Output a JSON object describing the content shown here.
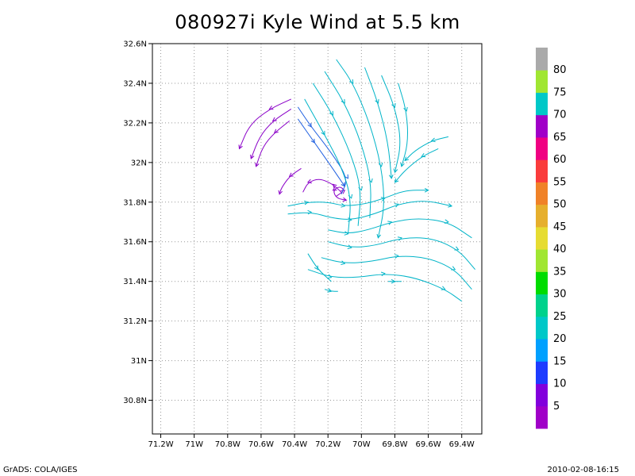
{
  "title": "080927i Kyle Wind at 5.5 km",
  "footer": {
    "left": "GrADS: COLA/IGES",
    "right": "2010-02-08-16:15"
  },
  "chart_data": {
    "type": "streamline",
    "title": "080927i Kyle Wind at 5.5 km",
    "xlabel": "",
    "ylabel": "",
    "xlim": [
      -71.25,
      -69.28
    ],
    "ylim": [
      30.63,
      32.6
    ],
    "grid": true,
    "x_ticks": [
      {
        "value": -71.2,
        "label": "71.2W"
      },
      {
        "value": -71.0,
        "label": "71W"
      },
      {
        "value": -70.8,
        "label": "70.8W"
      },
      {
        "value": -70.6,
        "label": "70.6W"
      },
      {
        "value": -70.4,
        "label": "70.4W"
      },
      {
        "value": -70.2,
        "label": "70.2W"
      },
      {
        "value": -70.0,
        "label": "70W"
      },
      {
        "value": -69.8,
        "label": "69.8W"
      },
      {
        "value": -69.6,
        "label": "69.6W"
      },
      {
        "value": -69.4,
        "label": "69.4W"
      }
    ],
    "y_ticks": [
      {
        "value": 30.8,
        "label": "30.8N"
      },
      {
        "value": 31.0,
        "label": "31N"
      },
      {
        "value": 31.2,
        "label": "31.2N"
      },
      {
        "value": 31.4,
        "label": "31.4N"
      },
      {
        "value": 31.6,
        "label": "31.6N"
      },
      {
        "value": 31.8,
        "label": "31.8N"
      },
      {
        "value": 32.0,
        "label": "32N"
      },
      {
        "value": 32.2,
        "label": "32.2N"
      },
      {
        "value": 32.4,
        "label": "32.4N"
      },
      {
        "value": 32.6,
        "label": "32.6N"
      }
    ],
    "storm_center": {
      "lon": -70.12,
      "lat": 31.84
    },
    "colorbar": {
      "colors": [
        "#a000c8",
        "#8200dc",
        "#1e3cff",
        "#00a0ff",
        "#00c8c8",
        "#00d28c",
        "#00dc00",
        "#a0e632",
        "#e6dc32",
        "#e6af2d",
        "#f08228",
        "#fa3c3c",
        "#f00082",
        "#a000c8",
        "#00c8c8",
        "#a0e632",
        "#aaaaaa"
      ],
      "labels": [
        "5",
        "10",
        "15",
        "20",
        "25",
        "30",
        "35",
        "40",
        "45",
        "50",
        "55",
        "60",
        "65",
        "70",
        "75",
        "80"
      ]
    },
    "streamlines": [
      {
        "color": "#8a00c8",
        "points": [
          [
            -70.42,
            32.32
          ],
          [
            -70.55,
            32.27
          ],
          [
            -70.67,
            32.19
          ],
          [
            -70.73,
            32.07
          ]
        ]
      },
      {
        "color": "#8a00c8",
        "points": [
          [
            -70.42,
            32.27
          ],
          [
            -70.53,
            32.21
          ],
          [
            -70.61,
            32.13
          ],
          [
            -70.66,
            32.02
          ]
        ]
      },
      {
        "color": "#8a00c8",
        "points": [
          [
            -70.43,
            32.21
          ],
          [
            -70.52,
            32.15
          ],
          [
            -70.59,
            32.08
          ],
          [
            -70.63,
            31.98
          ]
        ]
      },
      {
        "color": "#8a00c8",
        "points": [
          [
            -70.36,
            31.97
          ],
          [
            -70.43,
            31.93
          ],
          [
            -70.48,
            31.87
          ],
          [
            -70.49,
            31.84
          ]
        ]
      },
      {
        "color": "#8a00c8",
        "points": [
          [
            -70.12,
            31.85
          ],
          [
            -70.17,
            31.89
          ],
          [
            -70.25,
            31.92
          ],
          [
            -70.32,
            31.9
          ],
          [
            -70.35,
            31.85
          ]
        ]
      },
      {
        "color": "#8a00c8",
        "points": [
          [
            -70.15,
            31.83
          ],
          [
            -70.1,
            31.86
          ],
          [
            -70.13,
            31.88
          ],
          [
            -70.17,
            31.86
          ],
          [
            -70.15,
            31.82
          ],
          [
            -70.09,
            31.81
          ]
        ]
      },
      {
        "color": "#2060e0",
        "points": [
          [
            -70.38,
            32.28
          ],
          [
            -70.3,
            32.18
          ],
          [
            -70.18,
            32.05
          ],
          [
            -70.08,
            31.92
          ],
          [
            -70.12,
            31.84
          ]
        ]
      },
      {
        "color": "#2060e0",
        "points": [
          [
            -70.38,
            32.22
          ],
          [
            -70.28,
            32.1
          ],
          [
            -70.18,
            31.98
          ],
          [
            -70.1,
            31.88
          ]
        ]
      },
      {
        "color": "#00b4c8",
        "points": [
          [
            -70.15,
            32.52
          ],
          [
            -70.05,
            32.4
          ],
          [
            -69.95,
            32.2
          ],
          [
            -69.88,
            31.98
          ],
          [
            -69.86,
            31.78
          ],
          [
            -69.9,
            31.62
          ]
        ]
      },
      {
        "color": "#00b4c8",
        "points": [
          [
            -70.22,
            32.46
          ],
          [
            -70.1,
            32.3
          ],
          [
            -70.0,
            32.1
          ],
          [
            -69.94,
            31.9
          ],
          [
            -69.95,
            31.72
          ]
        ]
      },
      {
        "color": "#00b4c8",
        "points": [
          [
            -70.29,
            32.4
          ],
          [
            -70.17,
            32.24
          ],
          [
            -70.06,
            32.04
          ],
          [
            -70.0,
            31.86
          ],
          [
            -70.02,
            31.68
          ]
        ]
      },
      {
        "color": "#00b4c8",
        "points": [
          [
            -70.34,
            32.32
          ],
          [
            -70.22,
            32.14
          ],
          [
            -70.12,
            31.98
          ],
          [
            -70.06,
            31.82
          ],
          [
            -70.08,
            31.64
          ]
        ]
      },
      {
        "color": "#00b4c8",
        "points": [
          [
            -69.98,
            32.48
          ],
          [
            -69.9,
            32.3
          ],
          [
            -69.84,
            32.1
          ],
          [
            -69.82,
            31.92
          ]
        ]
      },
      {
        "color": "#00b4c8",
        "points": [
          [
            -69.88,
            32.44
          ],
          [
            -69.8,
            32.28
          ],
          [
            -69.76,
            32.1
          ],
          [
            -69.8,
            31.95
          ]
        ]
      },
      {
        "color": "#00b4c8",
        "points": [
          [
            -69.78,
            32.4
          ],
          [
            -69.73,
            32.26
          ],
          [
            -69.72,
            32.1
          ],
          [
            -69.76,
            31.98
          ]
        ]
      },
      {
        "color": "#00b4c8",
        "points": [
          [
            -69.48,
            32.13
          ],
          [
            -69.58,
            32.11
          ],
          [
            -69.68,
            32.06
          ],
          [
            -69.74,
            32.01
          ]
        ]
      },
      {
        "color": "#00b4c8",
        "points": [
          [
            -69.54,
            32.07
          ],
          [
            -69.64,
            32.03
          ],
          [
            -69.74,
            31.96
          ],
          [
            -69.8,
            31.9
          ]
        ]
      },
      {
        "color": "#00b4c8",
        "points": [
          [
            -70.44,
            31.78
          ],
          [
            -70.32,
            31.8
          ],
          [
            -70.2,
            31.8
          ],
          [
            -70.1,
            31.78
          ],
          [
            -69.98,
            31.79
          ],
          [
            -69.86,
            31.82
          ],
          [
            -69.74,
            31.86
          ],
          [
            -69.6,
            31.86
          ]
        ]
      },
      {
        "color": "#00b4c8",
        "points": [
          [
            -70.44,
            31.74
          ],
          [
            -70.3,
            31.75
          ],
          [
            -70.18,
            31.72
          ],
          [
            -70.06,
            31.71
          ],
          [
            -69.92,
            31.74
          ],
          [
            -69.78,
            31.79
          ],
          [
            -69.62,
            31.81
          ],
          [
            -69.46,
            31.78
          ]
        ]
      },
      {
        "color": "#00b4c8",
        "points": [
          [
            -70.2,
            31.66
          ],
          [
            -70.08,
            31.64
          ],
          [
            -69.96,
            31.66
          ],
          [
            -69.82,
            31.7
          ],
          [
            -69.66,
            31.72
          ],
          [
            -69.48,
            31.7
          ],
          [
            -69.34,
            31.62
          ]
        ]
      },
      {
        "color": "#00b4c8",
        "points": [
          [
            -70.2,
            31.6
          ],
          [
            -70.06,
            31.57
          ],
          [
            -69.92,
            31.58
          ],
          [
            -69.76,
            31.62
          ],
          [
            -69.58,
            31.62
          ],
          [
            -69.42,
            31.56
          ],
          [
            -69.32,
            31.46
          ]
        ]
      },
      {
        "color": "#00b4c8",
        "points": [
          [
            -70.24,
            31.52
          ],
          [
            -70.1,
            31.49
          ],
          [
            -69.94,
            31.5
          ],
          [
            -69.78,
            31.53
          ],
          [
            -69.6,
            31.52
          ],
          [
            -69.44,
            31.46
          ],
          [
            -69.34,
            31.36
          ]
        ]
      },
      {
        "color": "#00b4c8",
        "points": [
          [
            -70.32,
            31.46
          ],
          [
            -70.18,
            31.42
          ],
          [
            -70.02,
            31.42
          ],
          [
            -69.86,
            31.44
          ],
          [
            -69.68,
            31.42
          ],
          [
            -69.5,
            31.36
          ],
          [
            -69.4,
            31.3
          ]
        ]
      },
      {
        "color": "#00b4c8",
        "points": [
          [
            -70.32,
            31.54
          ],
          [
            -70.26,
            31.46
          ],
          [
            -70.18,
            31.4
          ]
        ]
      },
      {
        "color": "#00b4c8",
        "points": [
          [
            -70.22,
            31.36
          ],
          [
            -70.18,
            31.35
          ],
          [
            -70.14,
            31.35
          ]
        ]
      },
      {
        "color": "#00b4c8",
        "points": [
          [
            -69.84,
            31.4
          ],
          [
            -69.8,
            31.4
          ],
          [
            -69.76,
            31.4
          ]
        ]
      }
    ]
  }
}
